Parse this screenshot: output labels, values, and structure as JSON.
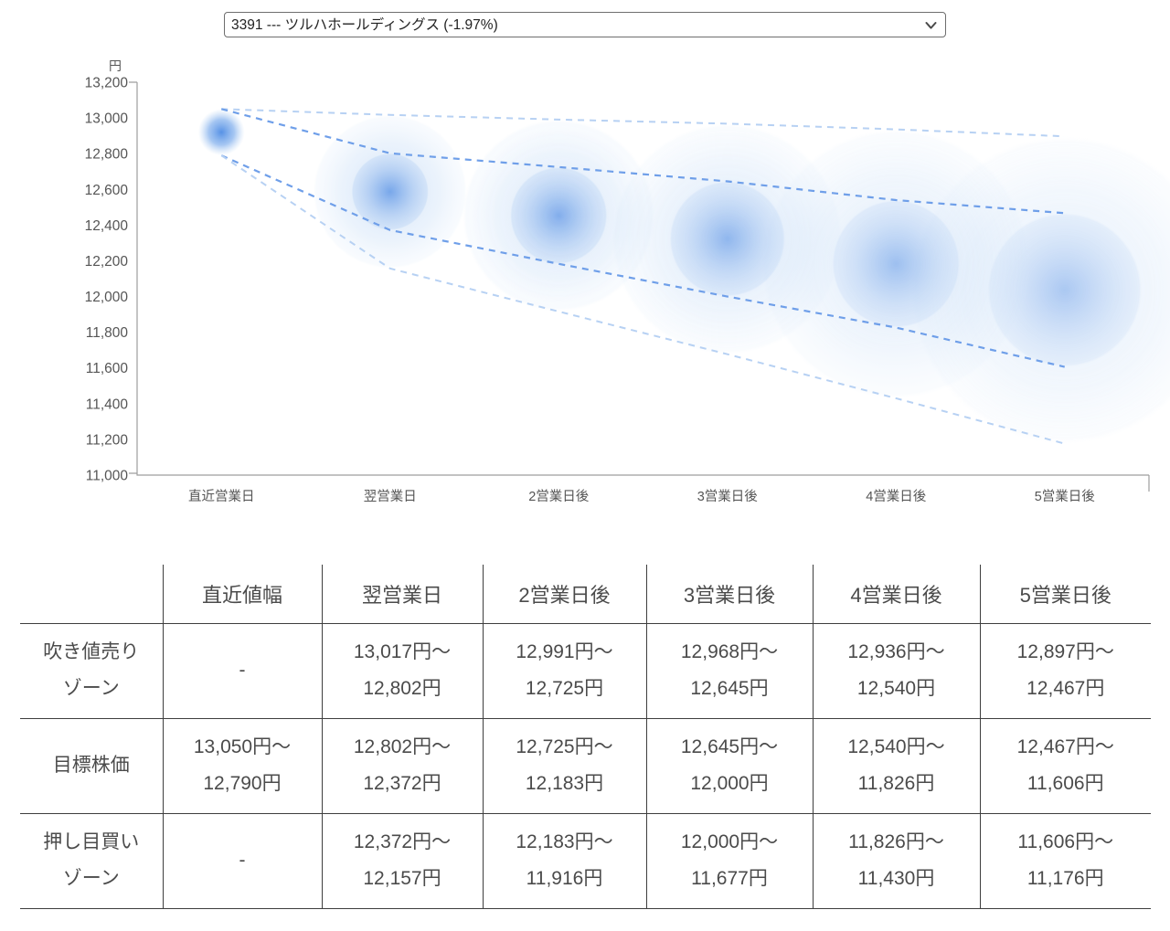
{
  "stock_selector": {
    "selected": "3391 --- ツルハホールディングス (-1.97%)",
    "chevron_icon": "chevron-down"
  },
  "chart_data": {
    "type": "bubble",
    "title": "",
    "xlabel": "",
    "ylabel": "円",
    "ylim": [
      11000,
      13200
    ],
    "ytick_step": 200,
    "ytick_labels": [
      "13,200",
      "13,000",
      "12,800",
      "12,600",
      "12,400",
      "12,200",
      "12,000",
      "11,800",
      "11,600",
      "11,400",
      "11,200",
      "11,000"
    ],
    "categories": [
      "直近営業日",
      "翌営業日",
      "2営業日後",
      "3営業日後",
      "4営業日後",
      "5営業日後"
    ],
    "series": [
      {
        "name": "吹き値売りゾーン上限",
        "values": [
          null,
          13017,
          12991,
          12968,
          12936,
          12897
        ]
      },
      {
        "name": "目標株価上限",
        "values": [
          13050,
          12802,
          12725,
          12645,
          12540,
          12467
        ]
      },
      {
        "name": "目標株価下限",
        "values": [
          12790,
          12372,
          12183,
          12000,
          11826,
          11606
        ]
      },
      {
        "name": "押し目買いゾーン下限",
        "values": [
          null,
          12157,
          11916,
          11677,
          11430,
          11176
        ]
      }
    ],
    "legend": "none",
    "grid": false,
    "colors": {
      "bubble_core": "#4e8ce4",
      "bubble_inner": "#5e96e6",
      "bubble_outer": "#a9c9f1",
      "line_mid": "#6f9fe9",
      "line_light": "#b7d1f3",
      "axis": "#9e9e9e",
      "tick_text": "#555555"
    }
  },
  "table": {
    "headers": [
      "",
      "直近値幅",
      "翌営業日",
      "2営業日後",
      "3営業日後",
      "4営業日後",
      "5営業日後"
    ],
    "rows": [
      {
        "label": "吹き値売り\nゾーン",
        "cells": [
          "-",
          "13,017円～\n12,802円",
          "12,991円～\n12,725円",
          "12,968円～\n12,645円",
          "12,936円～\n12,540円",
          "12,897円～\n12,467円"
        ]
      },
      {
        "label": "目標株価",
        "cells": [
          "13,050円～\n12,790円",
          "12,802円～\n12,372円",
          "12,725円～\n12,183円",
          "12,645円～\n12,000円",
          "12,540円～\n11,826円",
          "12,467円～\n11,606円"
        ]
      },
      {
        "label": "押し目買い\nゾーン",
        "cells": [
          "-",
          "12,372円～\n12,157円",
          "12,183円～\n11,916円",
          "12,000円～\n11,677円",
          "11,826円～\n11,430円",
          "11,606円～\n11,176円"
        ]
      }
    ]
  }
}
